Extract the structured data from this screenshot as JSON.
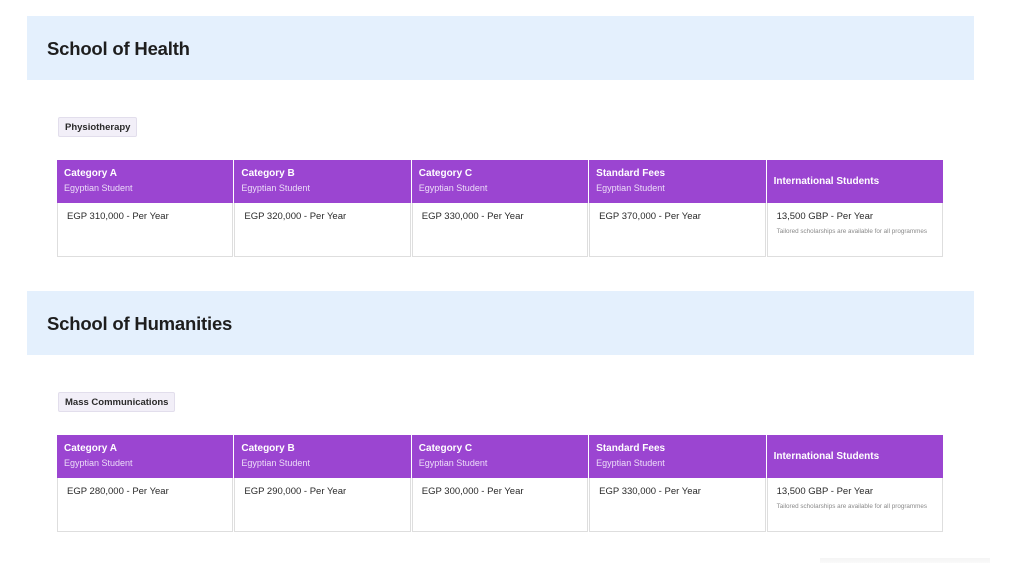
{
  "schools": [
    {
      "title": "School of Health",
      "programs": [
        {
          "name": "Physiotherapy",
          "columns": [
            {
              "title": "Category A",
              "subtitle": "Egyptian Student",
              "price": "EGP 310,000 - Per Year"
            },
            {
              "title": "Category B",
              "subtitle": "Egyptian Student",
              "price": "EGP 320,000 - Per Year"
            },
            {
              "title": "Category C",
              "subtitle": "Egyptian Student",
              "price": "EGP 330,000 - Per Year"
            },
            {
              "title": "Standard Fees",
              "subtitle": "Egyptian Student",
              "price": "EGP 370,000 - Per Year"
            },
            {
              "title": "International Students",
              "price": "13,500 GBP - Per Year",
              "note": "Tailored scholarships are available for all programmes"
            }
          ]
        }
      ]
    },
    {
      "title": "School of Humanities",
      "programs": [
        {
          "name": "Mass Communications",
          "columns": [
            {
              "title": "Category A",
              "subtitle": "Egyptian Student",
              "price": "EGP 280,000 - Per Year"
            },
            {
              "title": "Category B",
              "subtitle": "Egyptian Student",
              "price": "EGP 290,000 - Per Year"
            },
            {
              "title": "Category C",
              "subtitle": "Egyptian Student",
              "price": "EGP 300,000 - Per Year"
            },
            {
              "title": "Standard Fees",
              "subtitle": "Egyptian Student",
              "price": "EGP 330,000 - Per Year"
            },
            {
              "title": "International Students",
              "price": "13,500 GBP - Per Year",
              "note": "Tailored scholarships are available for all programmes"
            }
          ]
        }
      ]
    }
  ],
  "colors": {
    "header_band": "#e4f0fd",
    "column_header": "#9b45d1",
    "tag_background": "#f2eff8"
  }
}
